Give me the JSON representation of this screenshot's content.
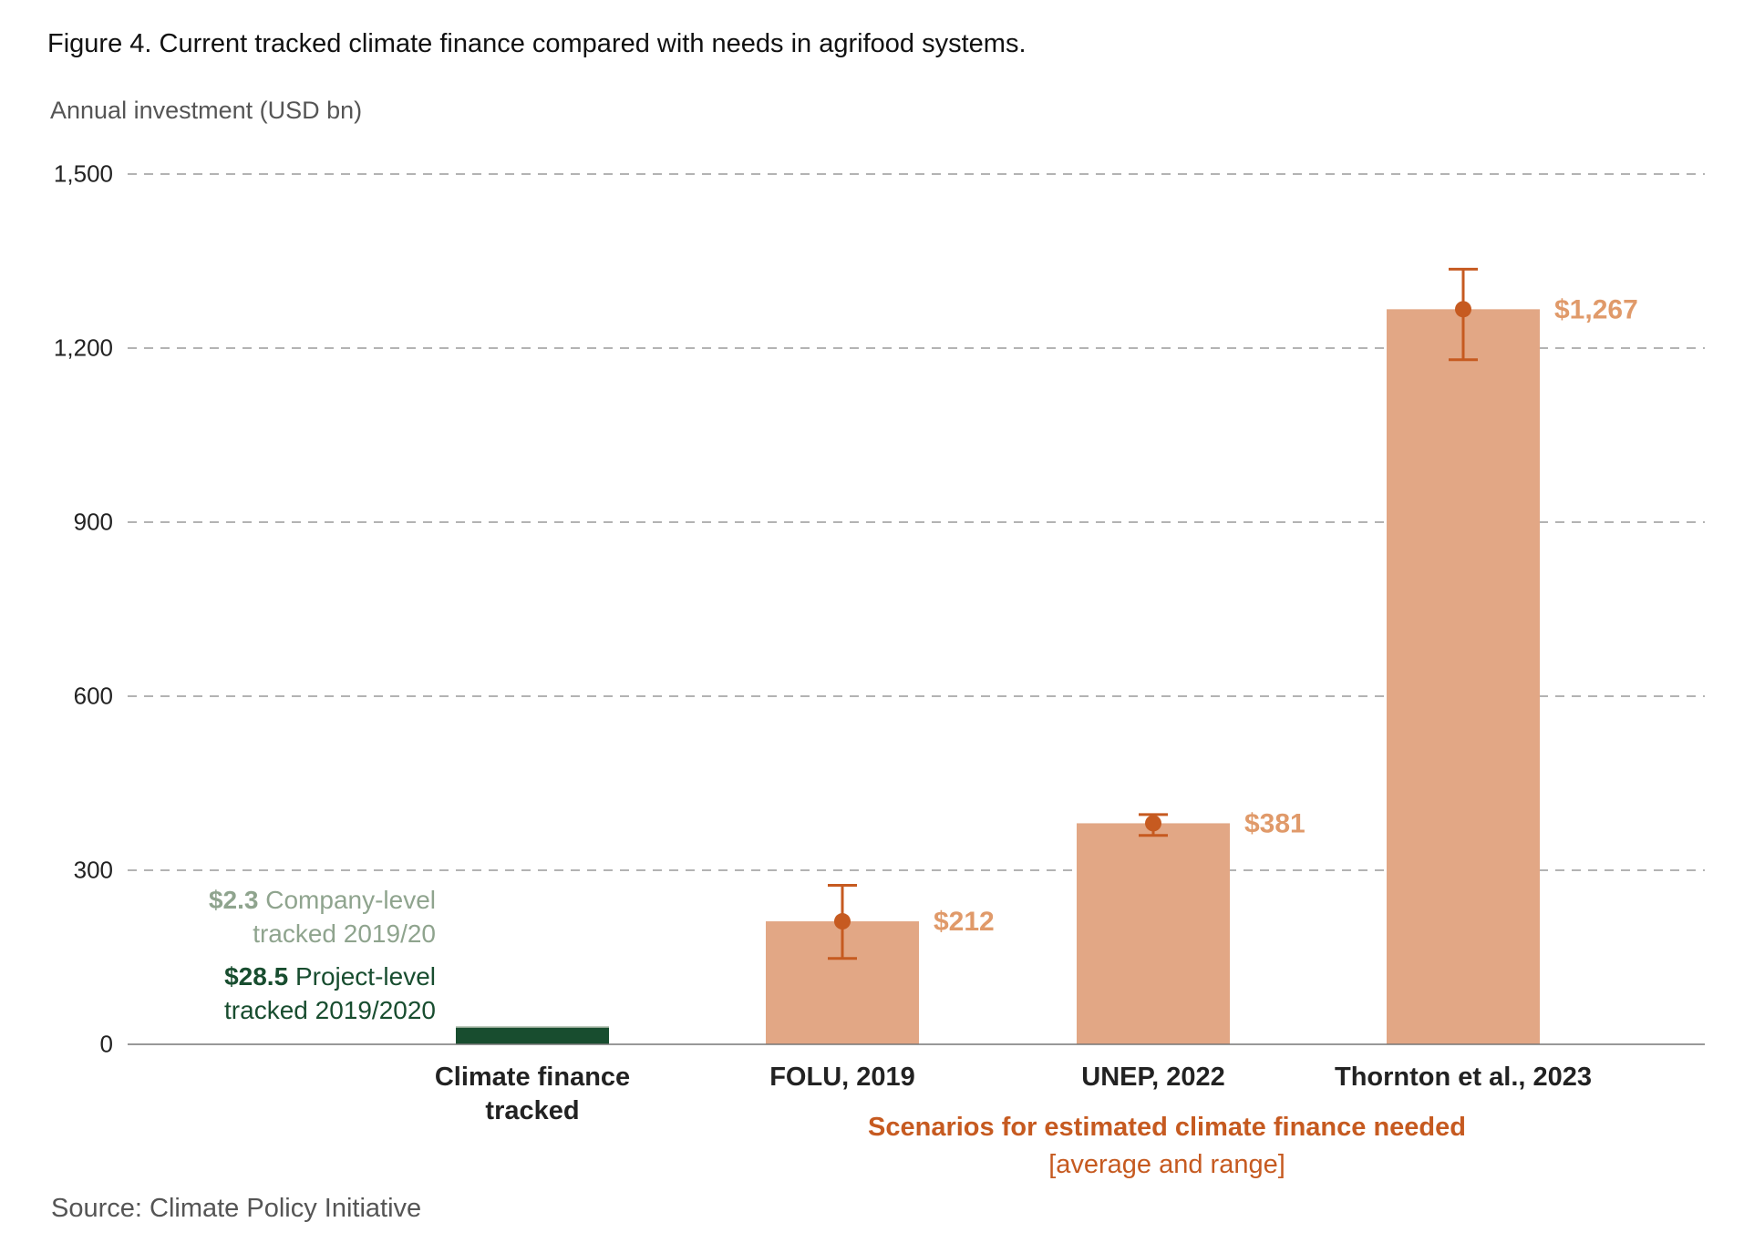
{
  "figure": {
    "title": "Figure 4. Current tracked climate finance compared with needs in agrifood systems.",
    "source": "Source: Climate Policy Initiative"
  },
  "chart_data": {
    "type": "bar",
    "title": "Figure 4. Current tracked climate finance compared with needs in agrifood systems.",
    "ylabel": "Annual investment (USD bn)",
    "ylim": [
      0,
      1500
    ],
    "yticks": [
      0,
      300,
      600,
      900,
      1200,
      1500
    ],
    "ytick_labels": [
      "0",
      "300",
      "600",
      "900",
      "1,200",
      "1,500"
    ],
    "grid": true,
    "categories": [
      "Climate finance tracked",
      "FOLU, 2019",
      "UNEP, 2022",
      "Thornton et al., 2023"
    ],
    "tracked": {
      "category_lines": [
        "Climate finance",
        "tracked"
      ],
      "stack": [
        {
          "name": "Project-level tracked 2019/2020",
          "value": 28.5,
          "value_label": "$28.5",
          "label_lines": [
            "Project-level",
            "tracked 2019/2020"
          ],
          "color": "#184d2f"
        },
        {
          "name": "Company-level tracked 2019/20",
          "value": 2.3,
          "value_label": "$2.3",
          "label_lines": [
            "Company-level",
            "tracked 2019/20"
          ],
          "color": "#8fa48e"
        }
      ]
    },
    "scenarios": [
      {
        "name": "FOLU, 2019",
        "value": 212,
        "label": "$212",
        "range": [
          148,
          274
        ]
      },
      {
        "name": "UNEP, 2022",
        "value": 381,
        "label": "$381",
        "range": [
          360,
          396
        ]
      },
      {
        "name": "Thornton et al., 2023",
        "value": 1267,
        "label": "$1,267",
        "range": [
          1180,
          1336
        ]
      }
    ],
    "scenario_group_label": "Scenarios for estimated climate finance needed",
    "scenario_group_sublabel": "[average and range]",
    "colors": {
      "bar_need": "#e2a785",
      "error": "#c65a20",
      "value_label": "#e09a6a",
      "company": "#8fa48e",
      "project": "#184d2f",
      "grid": "#9a9a9a",
      "axis": "#777777"
    }
  }
}
